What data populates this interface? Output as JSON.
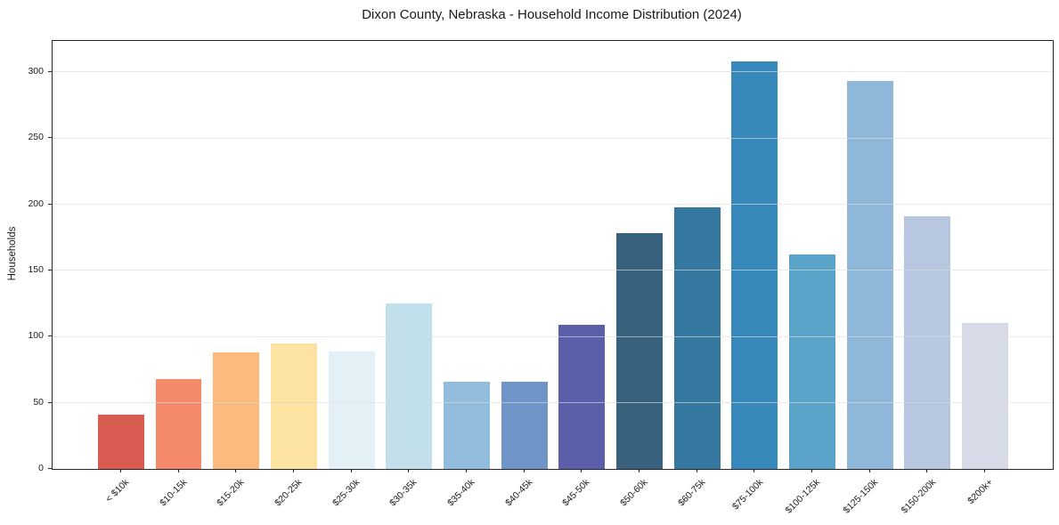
{
  "chart_data": {
    "type": "bar",
    "title": "Dixon County, Nebraska - Household Income Distribution (2024)",
    "xlabel": "",
    "ylabel": "Households",
    "categories": [
      "< $10k",
      "$10-15k",
      "$15-20k",
      "$20-25k",
      "$25-30k",
      "$30-35k",
      "$35-40k",
      "$40-45k",
      "$45-50k",
      "$50-60k",
      "$60-75k",
      "$75-100k",
      "$100-125k",
      "$125-150k",
      "$150-200k",
      "$200k+"
    ],
    "values": [
      41,
      68,
      88,
      95,
      89,
      125,
      66,
      66,
      109,
      178,
      198,
      308,
      162,
      293,
      191,
      110
    ],
    "bar_colors": [
      "#d85c52",
      "#f58a6b",
      "#fcba7d",
      "#fde3a2",
      "#e3f1f6",
      "#c2e0ec",
      "#92bcdb",
      "#6e94c8",
      "#5b5ea9",
      "#37617c",
      "#35789f",
      "#3789bb",
      "#5ba4c9",
      "#8fb7d9",
      "#b7c7e0",
      "#d7dae7"
    ],
    "yticks": [
      0,
      50,
      100,
      150,
      200,
      250,
      300
    ],
    "ylim": [
      0,
      323.5
    ],
    "grid": "horizontal",
    "legend": "none",
    "colors": {
      "background": "#ffffff",
      "spine": "#262626",
      "gridline": "#e9e9e9",
      "text": "#1a1a1a"
    }
  }
}
